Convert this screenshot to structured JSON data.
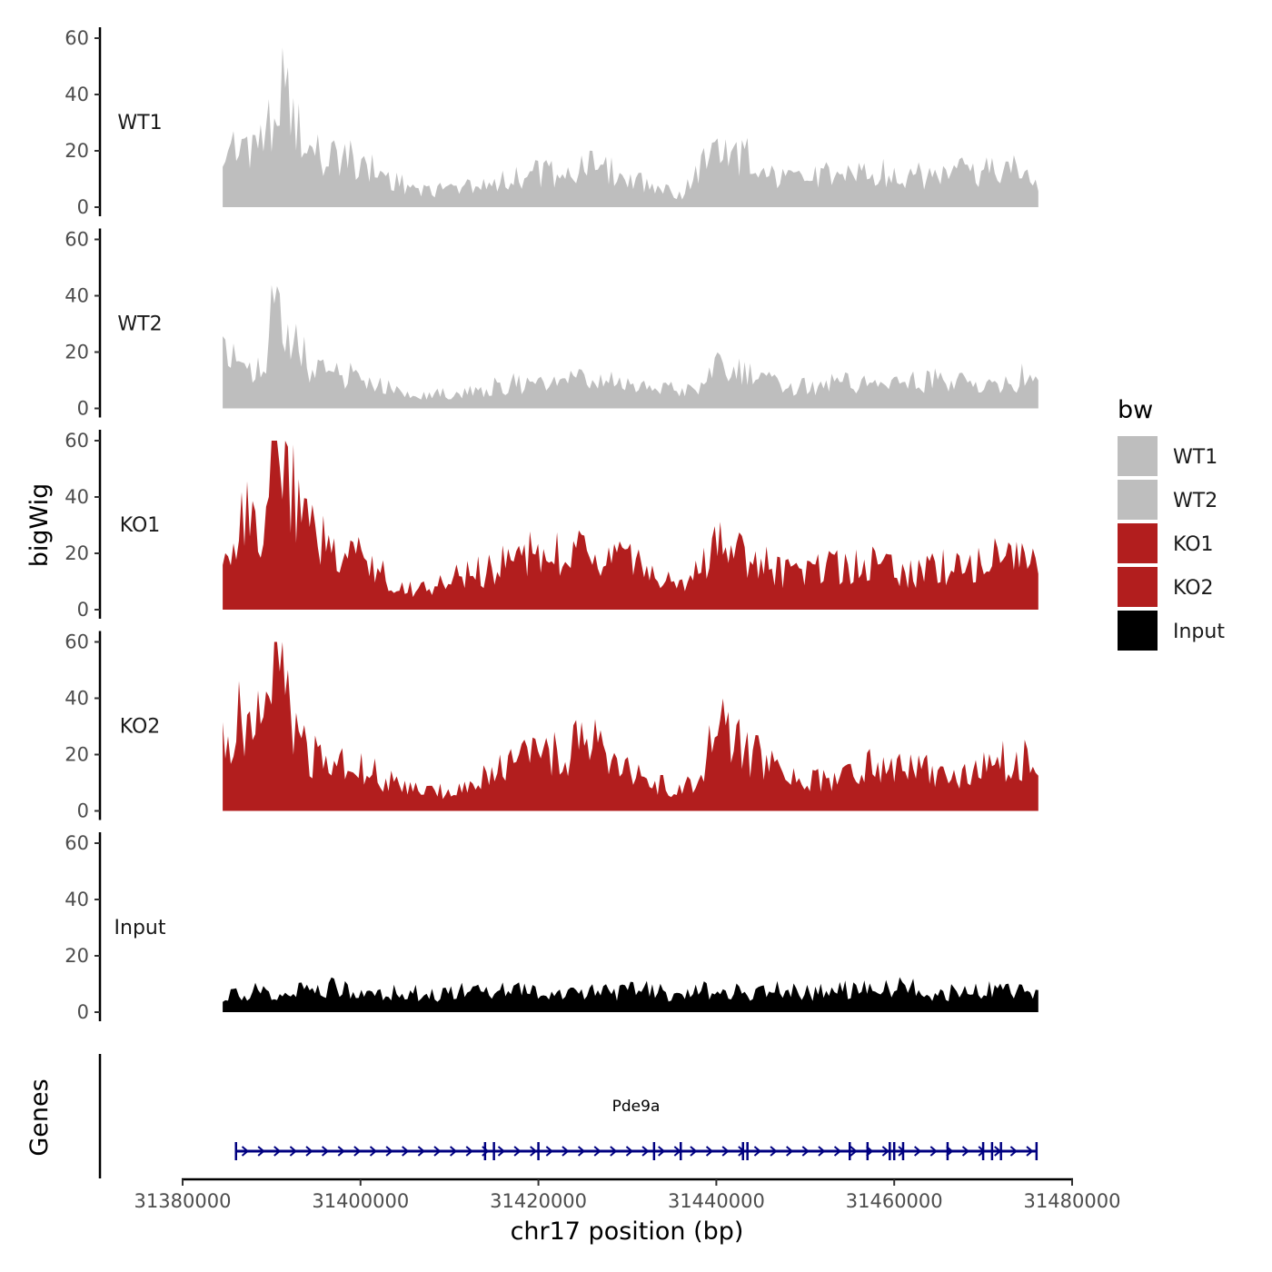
{
  "chart_data": {
    "type": "area",
    "ylabel": "bigWig",
    "xlabel": "chr17 position (bp)",
    "xlim": [
      31380000,
      31480000
    ],
    "x_ticks": [
      31380000,
      31400000,
      31420000,
      31440000,
      31460000,
      31480000
    ],
    "x_tick_labels": [
      "31380000",
      "31400000",
      "31420000",
      "31440000",
      "31460000",
      "31480000"
    ],
    "ylim": [
      0,
      60
    ],
    "y_ticks": [
      0,
      20,
      40,
      60
    ],
    "y_tick_labels": [
      "0",
      "20",
      "40",
      "60"
    ],
    "x_sample_positions": [
      31384500,
      31387000,
      31389000,
      31390700,
      31391800,
      31394000,
      31397000,
      31400000,
      31402000,
      31405000,
      31408000,
      31411000,
      31414000,
      31417000,
      31420000,
      31423000,
      31426000,
      31429000,
      31432000,
      31434000,
      31436000,
      31438000,
      31440000,
      31443000,
      31446000,
      31449000,
      31452000,
      31455000,
      31458000,
      31461000,
      31464000,
      31467000,
      31470000,
      31473000,
      31475000,
      31476200
    ],
    "series": [
      {
        "name": "WT1",
        "color": "#bebebe",
        "values": [
          20,
          25,
          22,
          44,
          36,
          20,
          18,
          17,
          12,
          8,
          6,
          7,
          9,
          10,
          12,
          13,
          14,
          12,
          9,
          7,
          4,
          13,
          20,
          19,
          11,
          9,
          11,
          12,
          13,
          11,
          11,
          13,
          12,
          14,
          13,
          6
        ]
      },
      {
        "name": "WT2",
        "color": "#bebebe",
        "values": [
          18,
          15,
          14,
          44,
          28,
          16,
          12,
          11,
          9,
          5,
          5,
          6,
          7,
          9,
          8,
          10,
          10,
          9,
          7,
          8,
          6,
          7,
          14,
          12,
          9,
          7,
          9,
          9,
          8,
          9,
          10,
          9,
          8,
          9,
          12,
          8
        ]
      },
      {
        "name": "KO1",
        "color": "#b21e1e",
        "values": [
          20,
          33,
          30,
          60,
          45,
          30,
          22,
          22,
          13,
          8,
          7,
          12,
          14,
          18,
          20,
          19,
          21,
          18,
          14,
          10,
          8,
          14,
          22,
          20,
          15,
          12,
          14,
          16,
          16,
          13,
          14,
          16,
          18,
          18,
          21,
          10
        ]
      },
      {
        "name": "KO2",
        "color": "#b21e1e",
        "values": [
          25,
          35,
          28,
          56,
          40,
          22,
          17,
          17,
          12,
          8,
          7,
          8,
          14,
          16,
          20,
          20,
          28,
          18,
          12,
          9,
          7,
          12,
          30,
          22,
          16,
          10,
          11,
          13,
          17,
          16,
          14,
          12,
          16,
          18,
          19,
          10
        ]
      },
      {
        "name": "Input",
        "color": "#000000",
        "values": [
          6,
          7,
          8,
          7,
          8,
          7,
          9,
          7,
          7,
          8,
          6,
          8,
          7,
          8,
          7,
          7,
          8,
          7,
          8,
          7,
          6,
          9,
          7,
          7,
          8,
          7,
          7,
          8,
          8,
          9,
          7,
          7,
          8,
          7,
          7,
          6
        ]
      }
    ],
    "legend": {
      "title": "bw",
      "items": [
        {
          "label": "WT1",
          "color": "#bebebe"
        },
        {
          "label": "WT2",
          "color": "#bebebe"
        },
        {
          "label": "KO1",
          "color": "#b21e1e"
        },
        {
          "label": "KO2",
          "color": "#b21e1e"
        },
        {
          "label": "Input",
          "color": "#000000"
        }
      ]
    },
    "genes_track": {
      "title": "Genes",
      "gene_name": "Pde9a",
      "strand": "+",
      "color": "#000080",
      "start": 31386000,
      "end": 31476000,
      "exons": [
        31386000,
        31414000,
        31415000,
        31420000,
        31433000,
        31436000,
        31443000,
        31443500,
        31455000,
        31457000,
        31459500,
        31460000,
        31461000,
        31466000,
        31470000,
        31471000,
        31472000,
        31476000
      ]
    }
  }
}
